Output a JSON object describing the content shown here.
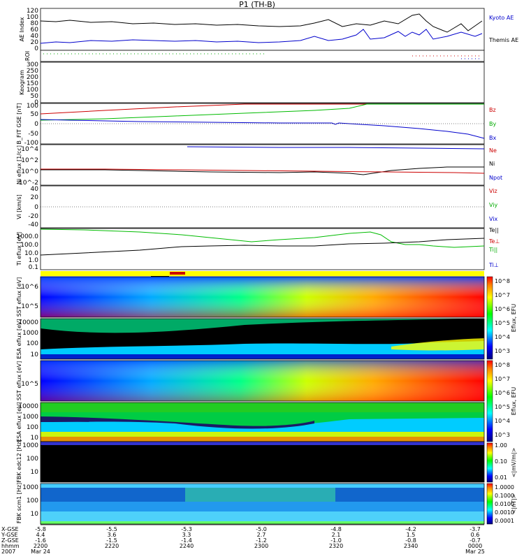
{
  "title": "P1 (TH-B)",
  "panels": {
    "ae": {
      "ylabel": "AE Index",
      "ticks": [
        "120",
        "100",
        "80",
        "60",
        "40",
        "20",
        "0"
      ],
      "legend": [
        {
          "text": "Kyoto AE",
          "color": "#0000cc"
        },
        {
          "text": "Themis AE",
          "color": "#000000"
        }
      ]
    },
    "roi": {
      "ylabel": "ROI"
    },
    "keogram": {
      "ylabel": "Keogram",
      "ticks": [
        "300",
        "250",
        "200",
        "150",
        "100",
        "50",
        "0"
      ]
    },
    "bfield": {
      "ylabel": "B_FIT GSE [nT]",
      "ticks": [
        "100",
        "50",
        "0",
        "-50",
        "-100"
      ],
      "legend": [
        {
          "text": "Bz",
          "color": "#cc0000"
        },
        {
          "text": "By",
          "color": "#00aa00"
        },
        {
          "text": "Bx",
          "color": "#0000cc"
        }
      ]
    },
    "density": {
      "ylabel": "Ni eflux [1/cc]",
      "ticks": [
        "10^4",
        "10^2",
        "10^0",
        "10^-2"
      ],
      "legend": [
        {
          "text": "Ne",
          "color": "#cc0000"
        },
        {
          "text": "Ni",
          "color": "#000000"
        },
        {
          "text": "Npot",
          "color": "#0000cc"
        }
      ]
    },
    "velocity": {
      "ylabel": "Vi [km/s]",
      "ticks": [
        "40",
        "20",
        "0",
        "-20",
        "-40"
      ],
      "legend": [
        {
          "text": "Viz",
          "color": "#cc0000"
        },
        {
          "text": "Viy",
          "color": "#00aa00"
        },
        {
          "text": "Vix",
          "color": "#0000cc"
        }
      ]
    },
    "temp": {
      "ylabel": "Ti eflux [eV]",
      "ticks": [
        "1000.0",
        "100.0",
        "10.0",
        "1.0",
        "0.1"
      ],
      "legend": [
        {
          "text": "Te||",
          "color": "#000000"
        },
        {
          "text": "Te⊥",
          "color": "#cc0000"
        },
        {
          "text": "Ti||",
          "color": "#00aa00"
        },
        {
          "text": "Ti⊥",
          "color": "#0000cc"
        }
      ]
    },
    "sst_i": {
      "ylabel": "SST eflux [eV]",
      "ticks": [
        "10^6",
        "10^5"
      ],
      "cblabel": "Eflux, EFU"
    },
    "esa_i": {
      "ylabel": "ESA eflux [eV]",
      "ticks": [
        "10000",
        "1000",
        "100",
        "10"
      ],
      "cblabel": "Eflux, EFU"
    },
    "sst_e": {
      "ylabel": "SST eflux [eV]",
      "ticks": [
        "10^5"
      ],
      "cblabel": "Eflux, EFU"
    },
    "esa_e": {
      "ylabel": "ESA eflux [eV]",
      "ticks": [
        "10000",
        "1000",
        "100",
        "10"
      ],
      "cblabel": "Eflux, EFU"
    },
    "fbk1": {
      "ylabel": "FBK edc12 [Hz]",
      "ticks": [
        "1000",
        "100",
        "10"
      ],
      "cblabel": "<|mV/m|>"
    },
    "fbk2": {
      "ylabel": "FBK scm1 [Hz]",
      "ticks": [
        "1000",
        "100",
        "10"
      ],
      "cblabel": "<|nT|>"
    }
  },
  "colorbars": {
    "eflux_ticks": [
      "10^8",
      "10^7",
      "10^6",
      "10^5",
      "10^4",
      "10^3"
    ],
    "mvm_ticks": [
      "1.00",
      "0.10",
      "0.01"
    ],
    "nt_ticks": [
      "1.0000",
      "0.1000",
      "0.0100",
      "0.0010",
      "0.0001"
    ]
  },
  "time_axis": {
    "row_labels": [
      "X-GSE",
      "Y-GSE",
      "Z-GSE",
      "hhmm",
      "2007"
    ],
    "columns": [
      [
        "-5.8",
        "4.4",
        "-1.6",
        "2200",
        "Mar 24"
      ],
      [
        "-5.5",
        "3.6",
        "-1.5",
        "2220",
        ""
      ],
      [
        "-5.3",
        "3.3",
        "-1.4",
        "2240",
        ""
      ],
      [
        "-5.0",
        "2.7",
        "-1.2",
        "2300",
        ""
      ],
      [
        "-4.8",
        "2.1",
        "-1.0",
        "2320",
        ""
      ],
      [
        "-4.2",
        "1.5",
        "-0.8",
        "2340",
        ""
      ],
      [
        "-3.7",
        "0.6",
        "-0.7",
        "0000",
        "Mar 25"
      ]
    ]
  },
  "chart_data": {
    "type": "line",
    "x": [
      "2200",
      "2220",
      "2240",
      "2300",
      "2320",
      "2340",
      "0000"
    ],
    "series": [
      {
        "name": "Kyoto AE",
        "values": [
          88,
          84,
          80,
          82,
          78,
          95,
          70
        ]
      },
      {
        "name": "Themis AE",
        "values": [
          28,
          32,
          30,
          30,
          28,
          55,
          45
        ]
      },
      {
        "name": "Bz",
        "values": [
          55,
          75,
          95,
          100,
          100,
          100,
          100
        ]
      },
      {
        "name": "By",
        "values": [
          30,
          35,
          45,
          60,
          100,
          100,
          100
        ]
      },
      {
        "name": "Bx",
        "values": [
          25,
          18,
          12,
          8,
          0,
          -15,
          -60
        ]
      }
    ]
  }
}
